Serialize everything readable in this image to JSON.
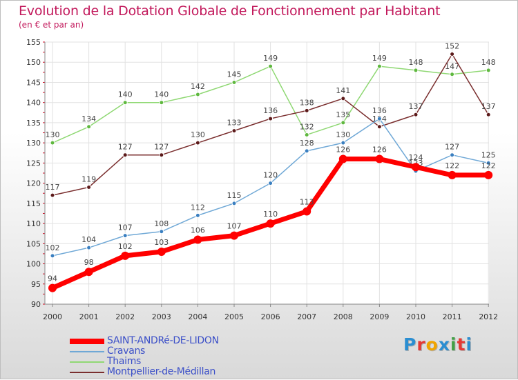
{
  "header": {
    "title": "Evolution de la Dotation Globale de Fonctionnement par Habitant",
    "subtitle": "(en € et par an)"
  },
  "logo": {
    "letters": [
      "P",
      "r",
      "o",
      "x",
      "i",
      "t",
      "i"
    ],
    "colors": [
      "#2b8ed1",
      "#e53935",
      "#f0a400",
      "#2b8ed1",
      "#43a047",
      "#e53935",
      "#2b8ed1"
    ]
  },
  "chart_data": {
    "type": "line",
    "title": "Evolution de la Dotation Globale de Fonctionnement par Habitant",
    "subtitle": "(en € et par an)",
    "xlabel": "",
    "ylabel": "",
    "ylim": [
      90,
      155
    ],
    "y_ticks": [
      90,
      95,
      100,
      105,
      110,
      115,
      120,
      125,
      130,
      135,
      140,
      145,
      150,
      155
    ],
    "x": [
      "2000",
      "2001",
      "2002",
      "2003",
      "2004",
      "2005",
      "2006",
      "2007",
      "2008",
      "2009",
      "2010",
      "2011",
      "2012"
    ],
    "grid": true,
    "legend_position": "bottom-left",
    "series": [
      {
        "name": "Thaims",
        "color": "#8fd873",
        "point": "#5fb83f",
        "thick": false,
        "values": [
          130,
          134,
          140,
          140,
          142,
          145,
          149,
          132,
          135,
          149,
          148,
          147,
          148
        ]
      },
      {
        "name": "Montpellier-de-Médillan",
        "color": "#7a2e2e",
        "point": "#5c1a1a",
        "thick": false,
        "values": [
          117,
          119,
          127,
          127,
          130,
          133,
          136,
          138,
          141,
          134,
          137,
          152,
          137
        ]
      },
      {
        "name": "Cravans",
        "color": "#6fa8d6",
        "point": "#3a7fc0",
        "thick": false,
        "values": [
          102,
          104,
          107,
          108,
          112,
          115,
          120,
          128,
          130,
          136,
          123,
          127,
          125
        ]
      },
      {
        "name": "SAINT-ANDRé-DE-LIDON",
        "color": "#ff0000",
        "point": "#ff0000",
        "thick": true,
        "values": [
          94,
          98,
          102,
          103,
          106,
          107,
          110,
          113,
          126,
          126,
          124,
          122,
          122
        ]
      }
    ],
    "legend_order": [
      "SAINT-ANDRé-DE-LIDON",
      "Cravans",
      "Thaims",
      "Montpellier-de-Médillan"
    ]
  }
}
